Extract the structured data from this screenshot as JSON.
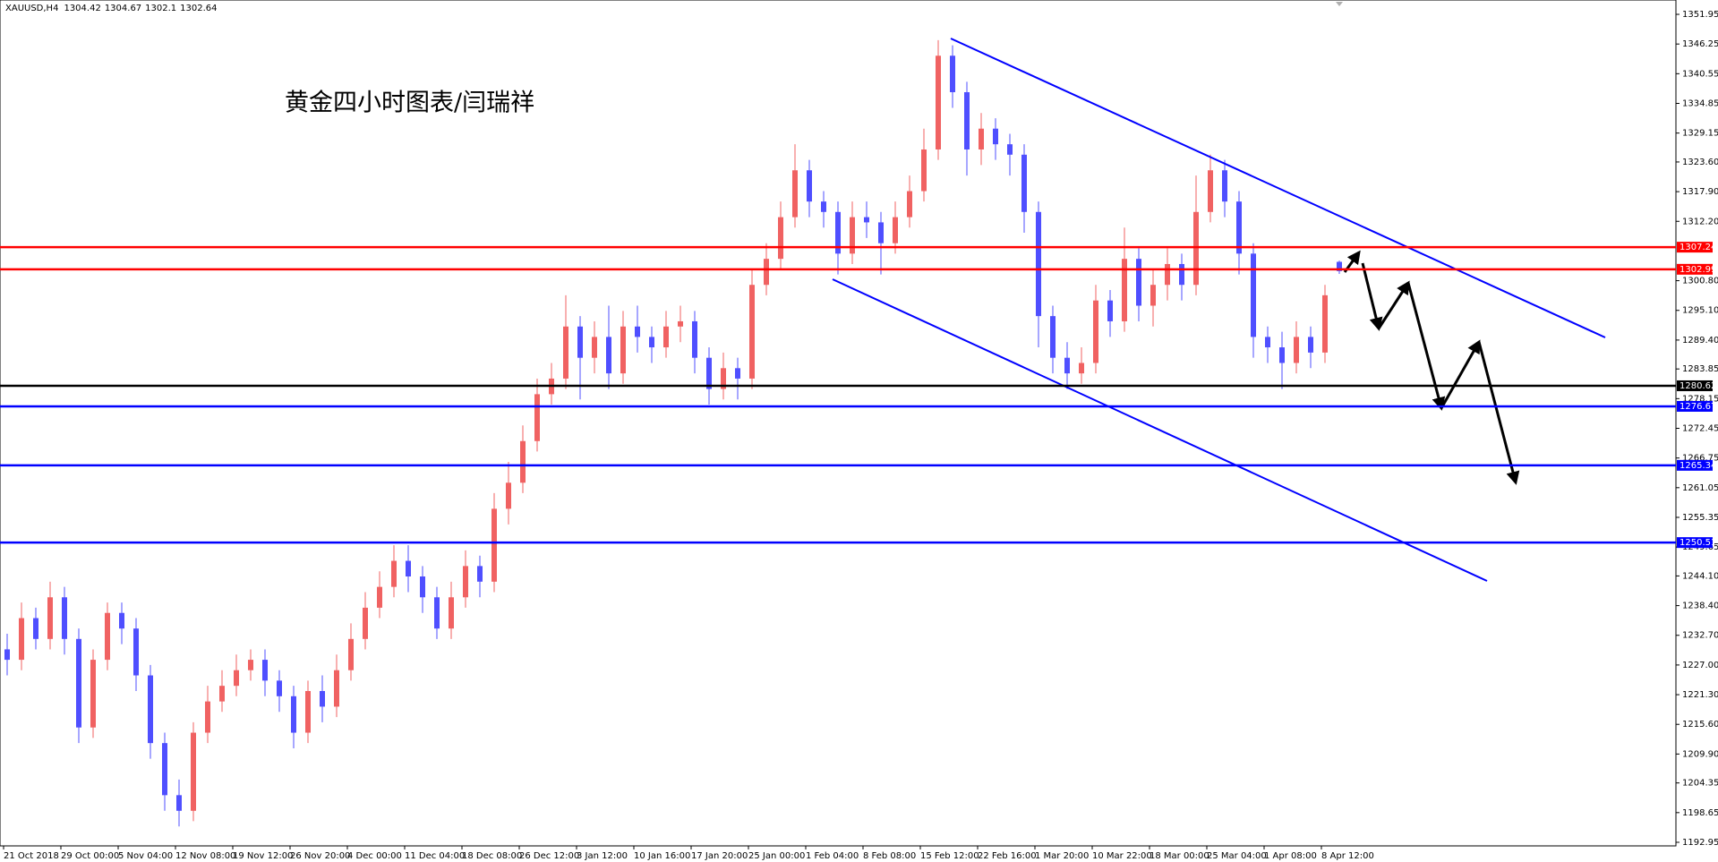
{
  "chart_data": {
    "type": "candlestick",
    "symbol": "XAUUSD,H4",
    "title": "黄金四小时图表/闫瑞祥",
    "up_color": "#f06262",
    "down_color": "#4f4fff",
    "categories": [
      "21 Oct 2018",
      "29 Oct 00:00",
      "5 Nov 04:00",
      "12 Nov 08:00",
      "19 Nov 12:00",
      "26 Nov 20:00",
      "4 Dec 00:00",
      "11 Dec 04:00",
      "18 Dec 08:00",
      "26 Dec 12:00",
      "3 Jan 12:00",
      "10 Jan 16:00",
      "17 Jan 20:00",
      "25 Jan 00:00",
      "1 Feb 04:00",
      "8 Feb 08:00",
      "15 Feb 12:00",
      "22 Feb 16:00",
      "1 Mar 20:00",
      "10 Mar 22:00",
      "18 Mar 00:00",
      "25 Mar 04:00",
      "1 Apr 08:00",
      "8 Apr 12:00"
    ],
    "open": [
      1230,
      1228,
      1236,
      1232,
      1240,
      1232,
      1215,
      1228,
      1237,
      1234,
      1225,
      1212,
      1202,
      1199,
      1214,
      1220,
      1223,
      1226,
      1228,
      1224,
      1221,
      1214,
      1222,
      1219,
      1226,
      1232,
      1238,
      1242,
      1247,
      1244,
      1240,
      1234,
      1240,
      1246,
      1243,
      1257,
      1262,
      1270,
      1279,
      1282,
      1292,
      1286,
      1290,
      1283,
      1292,
      1290,
      1288,
      1292,
      1293,
      1286,
      1280,
      1284,
      1282,
      1300,
      1305,
      1313,
      1322,
      1316,
      1314,
      1306,
      1313,
      1312,
      1308,
      1313,
      1318,
      1326,
      1344,
      1337,
      1326,
      1330,
      1327,
      1325,
      1314,
      1294,
      1286,
      1283,
      1285,
      1297,
      1293,
      1305,
      1296,
      1300,
      1304,
      1300,
      1314,
      1322,
      1316,
      1306,
      1290,
      1288,
      1285,
      1290,
      1287,
      1304.42
    ],
    "high": [
      1233,
      1239,
      1238,
      1243,
      1242,
      1234,
      1230,
      1239,
      1239,
      1236,
      1227,
      1214,
      1205,
      1216,
      1223,
      1226,
      1229,
      1230,
      1230,
      1226,
      1223,
      1224,
      1225,
      1229,
      1235,
      1241,
      1245,
      1250,
      1250,
      1246,
      1242,
      1243,
      1249,
      1248,
      1260,
      1266,
      1273,
      1282,
      1285,
      1298,
      1294,
      1293,
      1296,
      1295,
      1296,
      1292,
      1295,
      1296,
      1295,
      1288,
      1287,
      1286,
      1303,
      1308,
      1316,
      1327,
      1324,
      1318,
      1316,
      1316,
      1316,
      1314,
      1316,
      1321,
      1330,
      1347,
      1346,
      1339,
      1333,
      1332,
      1329,
      1327,
      1316,
      1296,
      1289,
      1288,
      1300,
      1299,
      1311,
      1307,
      1303,
      1307,
      1306,
      1321,
      1325,
      1324,
      1318,
      1308,
      1292,
      1291,
      1293,
      1292,
      1300,
      1304.67
    ],
    "low": [
      1225,
      1226,
      1230,
      1230,
      1229,
      1212,
      1213,
      1226,
      1231,
      1222,
      1209,
      1199,
      1196,
      1197,
      1212,
      1218,
      1221,
      1224,
      1221,
      1218,
      1211,
      1212,
      1216,
      1217,
      1224,
      1230,
      1236,
      1240,
      1241,
      1237,
      1232,
      1232,
      1238,
      1240,
      1241,
      1254,
      1260,
      1268,
      1277,
      1280,
      1278,
      1283,
      1280,
      1281,
      1287,
      1285,
      1286,
      1289,
      1283,
      1277,
      1278,
      1278,
      1280,
      1298,
      1303,
      1311,
      1313,
      1311,
      1302,
      1304,
      1309,
      1302,
      1306,
      1311,
      1316,
      1324,
      1334,
      1321,
      1323,
      1324,
      1321,
      1310,
      1288,
      1283,
      1280,
      1281,
      1283,
      1290,
      1291,
      1293,
      1292,
      1297,
      1297,
      1298,
      1312,
      1313,
      1302,
      1286,
      1285,
      1280,
      1283,
      1284,
      1285,
      1302.1
    ],
    "close": [
      1228,
      1236,
      1232,
      1240,
      1232,
      1215,
      1228,
      1237,
      1234,
      1225,
      1212,
      1202,
      1199,
      1214,
      1220,
      1223,
      1226,
      1228,
      1224,
      1221,
      1214,
      1222,
      1219,
      1226,
      1232,
      1238,
      1242,
      1247,
      1244,
      1240,
      1234,
      1240,
      1246,
      1243,
      1257,
      1262,
      1270,
      1279,
      1282,
      1292,
      1286,
      1290,
      1283,
      1292,
      1290,
      1288,
      1292,
      1293,
      1286,
      1280,
      1284,
      1282,
      1300,
      1305,
      1313,
      1322,
      1316,
      1314,
      1306,
      1313,
      1312,
      1308,
      1313,
      1318,
      1326,
      1344,
      1337,
      1326,
      1330,
      1327,
      1325,
      1314,
      1294,
      1286,
      1283,
      1285,
      1297,
      1293,
      1305,
      1296,
      1300,
      1304,
      1300,
      1314,
      1322,
      1316,
      1306,
      1290,
      1288,
      1285,
      1290,
      1287,
      1298,
      1302.64
    ],
    "ylim": [
      1192.26,
      1354.36
    ],
    "yticks": [
      1351.95,
      1346.25,
      1340.55,
      1334.85,
      1329.15,
      {
        "value": 1323.6,
        "label": "1323.60"
      },
      {
        "value": 1317.9,
        "label": "1317.90"
      },
      {
        "value": 1312.2,
        "label": "1312.20"
      },
      {
        "value": 1300.8,
        "label": "1300.80"
      },
      {
        "value": 1295.1,
        "label": "1295.10"
      },
      {
        "value": 1289.4,
        "label": "1289.40"
      },
      1283.85,
      1278.15,
      1272.45,
      1266.75,
      1261.05,
      1255.35,
      1249.65,
      {
        "value": 1244.1,
        "label": "1244.10"
      },
      {
        "value": 1238.4,
        "label": "1238.40"
      },
      {
        "value": 1232.7,
        "label": "1232.70"
      },
      {
        "value": 1227,
        "label": "1227.00"
      },
      {
        "value": 1221.3,
        "label": "1221.30"
      },
      {
        "value": 1215.6,
        "label": "1215.60"
      },
      {
        "value": 1209.9,
        "label": "1209.90"
      },
      1204.35,
      1198.65,
      1192.95
    ],
    "levels": [
      {
        "value": 1307.24,
        "color": "#ff0000"
      },
      {
        "value": 1302.99,
        "color": "#ff0000"
      },
      {
        "value": 1280.62,
        "color": "#000000"
      },
      {
        "value": 1276.67,
        "color": "#0000ff"
      },
      {
        "value": 1265.34,
        "color": "#0000ff"
      },
      {
        "value": 1250.51,
        "color": "#0000ff"
      }
    ]
  }
}
